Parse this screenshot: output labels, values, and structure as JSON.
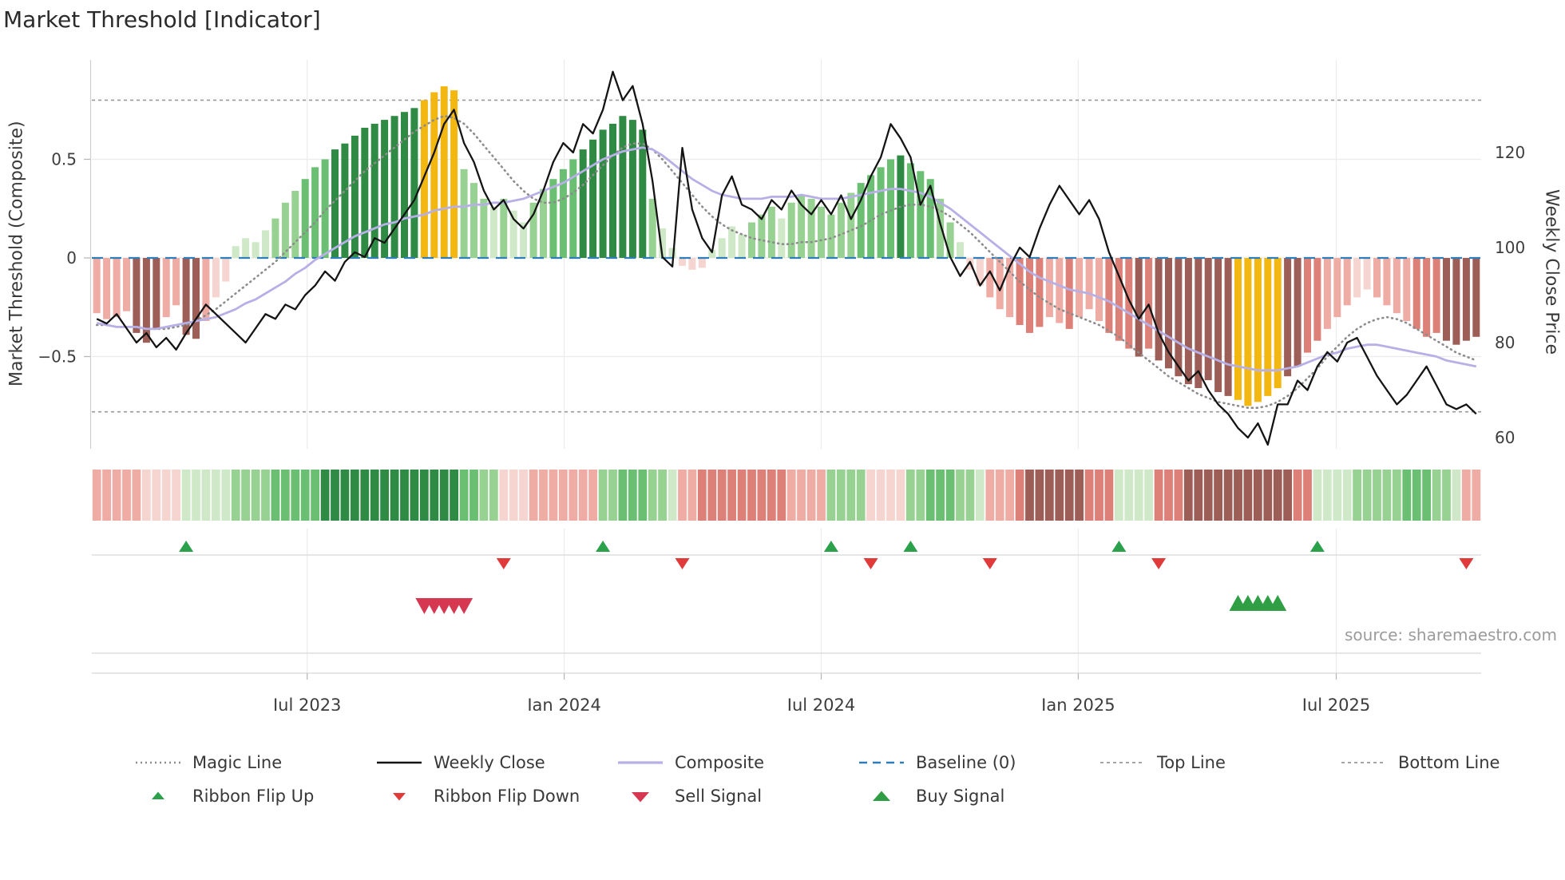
{
  "title": "Market Threshold [Indicator]",
  "source": "source: sharemaestro.com",
  "palette": {
    "bars": {
      "p1": "#f6d4cf",
      "p2": "#efaca4",
      "p3": "#dc8078",
      "m": "#9d5e57",
      "g1": "#cfe9c8",
      "g2": "#98d292",
      "g3": "#6abf72",
      "g4": "#2f8b44",
      "y": "#f3b712"
    },
    "css": {
      "magic": "#8c8c8c",
      "weekly": "#141414",
      "composite": "#b7b0e6",
      "baseline": "#2e7ebb",
      "guide": "#9a9a9a",
      "flipup": "#2ba14c",
      "flipdown": "#e03a3a",
      "sell": "#d63852",
      "buy": "#2f9e44"
    }
  },
  "legend": {
    "row1": [
      {
        "label": "Magic Line"
      },
      {
        "label": "Weekly Close"
      },
      {
        "label": "Composite"
      },
      {
        "label": "Baseline (0)"
      },
      {
        "label": "Top Line"
      },
      {
        "label": "Bottom Line"
      }
    ],
    "row2": [
      {
        "label": "Ribbon Flip Up"
      },
      {
        "label": "Ribbon Flip Down"
      },
      {
        "label": "Sell Signal"
      },
      {
        "label": "Buy Signal"
      }
    ]
  },
  "chart_data": {
    "type": "composite-indicator",
    "title": "Market Threshold [Indicator]",
    "left_axis": {
      "label": "Market Threshold (Composite)",
      "ticks": [
        {
          "label": "0.5",
          "v": 0.5
        },
        {
          "label": "0",
          "v": 0
        },
        {
          "label": "−0.5",
          "v": -0.5
        }
      ],
      "range": [
        -1.0,
        1.0
      ]
    },
    "right_axis": {
      "label": "Weekly Close Price",
      "ticks": [
        {
          "label": "120",
          "v": 120
        },
        {
          "label": "100",
          "v": 100
        },
        {
          "label": "80",
          "v": 80
        },
        {
          "label": "60",
          "v": 60
        }
      ],
      "range": [
        55,
        140
      ]
    },
    "x_axis": {
      "ticks": [
        {
          "label": "Jul 2023",
          "i": 21.7
        },
        {
          "label": "Jan 2024",
          "i": 47.6
        },
        {
          "label": "Jul 2024",
          "i": 73.5
        },
        {
          "label": "Jan 2025",
          "i": 99.4
        },
        {
          "label": "Jul 2025",
          "i": 125.4
        }
      ]
    },
    "baseline": 0,
    "top_line": 0.8,
    "bottom_line": -0.78,
    "bars": {
      "values": [
        -0.28,
        -0.31,
        -0.3,
        -0.27,
        -0.38,
        -0.43,
        -0.36,
        -0.3,
        -0.24,
        -0.39,
        -0.41,
        -0.32,
        -0.2,
        -0.12,
        0.06,
        0.1,
        0.08,
        0.14,
        0.2,
        0.28,
        0.34,
        0.4,
        0.46,
        0.5,
        0.55,
        0.58,
        0.62,
        0.66,
        0.68,
        0.7,
        0.72,
        0.74,
        0.76,
        0.8,
        0.84,
        0.87,
        0.85,
        0.45,
        0.38,
        0.3,
        0.26,
        0.3,
        0.24,
        0.18,
        0.28,
        0.35,
        0.4,
        0.45,
        0.5,
        0.55,
        0.6,
        0.65,
        0.68,
        0.72,
        0.7,
        0.65,
        0.3,
        0.15,
        0.05,
        -0.04,
        -0.06,
        -0.05,
        0.04,
        0.1,
        0.16,
        0.12,
        0.18,
        0.22,
        0.26,
        0.2,
        0.28,
        0.32,
        0.3,
        0.26,
        0.22,
        0.28,
        0.33,
        0.38,
        0.42,
        0.46,
        0.5,
        0.52,
        0.48,
        0.44,
        0.4,
        0.3,
        0.18,
        0.08,
        -0.06,
        -0.14,
        -0.2,
        -0.26,
        -0.3,
        -0.34,
        -0.38,
        -0.35,
        -0.3,
        -0.33,
        -0.36,
        -0.3,
        -0.26,
        -0.32,
        -0.38,
        -0.42,
        -0.46,
        -0.5,
        -0.46,
        -0.52,
        -0.56,
        -0.6,
        -0.64,
        -0.66,
        -0.62,
        -0.68,
        -0.7,
        -0.72,
        -0.75,
        -0.73,
        -0.7,
        -0.66,
        -0.6,
        -0.55,
        -0.48,
        -0.42,
        -0.36,
        -0.3,
        -0.24,
        -0.2,
        -0.16,
        -0.2,
        -0.24,
        -0.28,
        -0.32,
        -0.36,
        -0.4,
        -0.38,
        -0.42,
        -0.44,
        -0.42,
        -0.4
      ],
      "colors": [
        "p2",
        "p2",
        "p2",
        "p2",
        "m",
        "m",
        "m",
        "p2",
        "p2",
        "m",
        "m",
        "p2",
        "p1",
        "p1",
        "g1",
        "g1",
        "g1",
        "g1",
        "g2",
        "g2",
        "g2",
        "g3",
        "g3",
        "g3",
        "g4",
        "g4",
        "g4",
        "g4",
        "g4",
        "g4",
        "g4",
        "g4",
        "g4",
        "y",
        "y",
        "y",
        "y",
        "g2",
        "g2",
        "g2",
        "g1",
        "g2",
        "g1",
        "g1",
        "g2",
        "g2",
        "g3",
        "g3",
        "g3",
        "g4",
        "g4",
        "g4",
        "g4",
        "g4",
        "g4",
        "g4",
        "g2",
        "g1",
        "g1",
        "p1",
        "p1",
        "p1",
        "g1",
        "g1",
        "g1",
        "g1",
        "g2",
        "g2",
        "g2",
        "g1",
        "g2",
        "g2",
        "g2",
        "g2",
        "g2",
        "g2",
        "g2",
        "g3",
        "g3",
        "g3",
        "g3",
        "g4",
        "g3",
        "g3",
        "g3",
        "g2",
        "g2",
        "g1",
        "p1",
        "p1",
        "p2",
        "p2",
        "p2",
        "p3",
        "p3",
        "p3",
        "p2",
        "p2",
        "p3",
        "p2",
        "p2",
        "p2",
        "p3",
        "p3",
        "p3",
        "m",
        "p3",
        "m",
        "m",
        "m",
        "m",
        "m",
        "m",
        "m",
        "m",
        "y",
        "y",
        "y",
        "y",
        "y",
        "m",
        "m",
        "p3",
        "p3",
        "p2",
        "p2",
        "p2",
        "p1",
        "p1",
        "p2",
        "p2",
        "p2",
        "p2",
        "p3",
        "p3",
        "p3",
        "m",
        "m",
        "m",
        "m"
      ]
    },
    "weekly_close": [
      85,
      84,
      86,
      83,
      80,
      82,
      79,
      81,
      78.5,
      82,
      85,
      88,
      86,
      84,
      82,
      80,
      83,
      86,
      85,
      88,
      87,
      90,
      92,
      95,
      93,
      97,
      99,
      98,
      102,
      101,
      104,
      107,
      110,
      115,
      120,
      126,
      129,
      122,
      118,
      112,
      108,
      110,
      106,
      104,
      107,
      112,
      118,
      122,
      120,
      126,
      124,
      129,
      137,
      131,
      134,
      126,
      114,
      98,
      96,
      121,
      108,
      102,
      99,
      111,
      115,
      109,
      108,
      106,
      110,
      108,
      112,
      109,
      107,
      110,
      107,
      111,
      106,
      110,
      115,
      119,
      126,
      123,
      119,
      109,
      113,
      105,
      98,
      94,
      97,
      92,
      95,
      91,
      96,
      100,
      98,
      104,
      109,
      113,
      110,
      107,
      110,
      106,
      99,
      94,
      89,
      85,
      88,
      82,
      78,
      75,
      72,
      74,
      70,
      67,
      65,
      62,
      60,
      63,
      58.5,
      67,
      67,
      72,
      70,
      75,
      78,
      76,
      80,
      81,
      77,
      73,
      70,
      67,
      69,
      72,
      75,
      71,
      67,
      66,
      67,
      65
    ],
    "composite_line": [
      -0.33,
      -0.34,
      -0.35,
      -0.35,
      -0.35,
      -0.36,
      -0.36,
      -0.35,
      -0.34,
      -0.33,
      -0.32,
      -0.31,
      -0.3,
      -0.28,
      -0.26,
      -0.23,
      -0.21,
      -0.18,
      -0.15,
      -0.12,
      -0.08,
      -0.05,
      -0.01,
      0.02,
      0.05,
      0.08,
      0.11,
      0.13,
      0.15,
      0.17,
      0.18,
      0.2,
      0.21,
      0.22,
      0.24,
      0.25,
      0.26,
      0.26,
      0.27,
      0.27,
      0.28,
      0.28,
      0.29,
      0.3,
      0.32,
      0.34,
      0.36,
      0.38,
      0.41,
      0.44,
      0.47,
      0.5,
      0.52,
      0.54,
      0.55,
      0.56,
      0.55,
      0.52,
      0.48,
      0.44,
      0.4,
      0.37,
      0.34,
      0.32,
      0.31,
      0.3,
      0.3,
      0.3,
      0.31,
      0.31,
      0.31,
      0.32,
      0.31,
      0.3,
      0.3,
      0.3,
      0.31,
      0.32,
      0.33,
      0.34,
      0.35,
      0.35,
      0.34,
      0.33,
      0.31,
      0.28,
      0.25,
      0.21,
      0.17,
      0.13,
      0.09,
      0.05,
      0.01,
      -0.03,
      -0.07,
      -0.1,
      -0.12,
      -0.14,
      -0.16,
      -0.17,
      -0.18,
      -0.2,
      -0.22,
      -0.25,
      -0.28,
      -0.31,
      -0.34,
      -0.37,
      -0.4,
      -0.43,
      -0.46,
      -0.48,
      -0.5,
      -0.52,
      -0.54,
      -0.55,
      -0.56,
      -0.57,
      -0.57,
      -0.57,
      -0.56,
      -0.55,
      -0.53,
      -0.51,
      -0.49,
      -0.48,
      -0.46,
      -0.45,
      -0.44,
      -0.44,
      -0.45,
      -0.46,
      -0.47,
      -0.48,
      -0.49,
      -0.5,
      -0.52,
      -0.53,
      -0.54,
      -0.55
    ],
    "magic_line": [
      -0.34,
      -0.34,
      -0.35,
      -0.35,
      -0.35,
      -0.36,
      -0.36,
      -0.36,
      -0.35,
      -0.34,
      -0.32,
      -0.29,
      -0.26,
      -0.22,
      -0.18,
      -0.14,
      -0.1,
      -0.06,
      -0.02,
      0.03,
      0.08,
      0.13,
      0.18,
      0.24,
      0.29,
      0.34,
      0.39,
      0.44,
      0.48,
      0.52,
      0.56,
      0.6,
      0.64,
      0.67,
      0.7,
      0.72,
      0.71,
      0.68,
      0.63,
      0.57,
      0.51,
      0.45,
      0.39,
      0.34,
      0.3,
      0.28,
      0.28,
      0.3,
      0.33,
      0.37,
      0.42,
      0.47,
      0.52,
      0.56,
      0.58,
      0.58,
      0.55,
      0.5,
      0.44,
      0.38,
      0.32,
      0.26,
      0.21,
      0.17,
      0.14,
      0.12,
      0.1,
      0.09,
      0.08,
      0.07,
      0.07,
      0.08,
      0.08,
      0.09,
      0.1,
      0.12,
      0.14,
      0.16,
      0.19,
      0.22,
      0.24,
      0.26,
      0.27,
      0.27,
      0.26,
      0.24,
      0.21,
      0.17,
      0.13,
      0.08,
      0.03,
      -0.02,
      -0.07,
      -0.12,
      -0.16,
      -0.2,
      -0.23,
      -0.26,
      -0.28,
      -0.3,
      -0.32,
      -0.34,
      -0.37,
      -0.4,
      -0.44,
      -0.48,
      -0.52,
      -0.56,
      -0.6,
      -0.63,
      -0.66,
      -0.69,
      -0.71,
      -0.73,
      -0.74,
      -0.75,
      -0.76,
      -0.76,
      -0.75,
      -0.73,
      -0.7,
      -0.66,
      -0.61,
      -0.56,
      -0.5,
      -0.45,
      -0.4,
      -0.36,
      -0.33,
      -0.31,
      -0.3,
      -0.31,
      -0.33,
      -0.36,
      -0.39,
      -0.42,
      -0.45,
      -0.48,
      -0.5,
      -0.52
    ],
    "ribbon": [
      "p2",
      "p2",
      "p2",
      "p2",
      "p2",
      "p1",
      "p1",
      "p1",
      "p1",
      "g1",
      "g1",
      "g1",
      "g1",
      "g1",
      "g2",
      "g2",
      "g2",
      "g2",
      "g3",
      "g3",
      "g3",
      "g3",
      "g3",
      "g4",
      "g4",
      "g4",
      "g4",
      "g4",
      "g4",
      "g4",
      "g4",
      "g4",
      "g4",
      "g4",
      "g4",
      "g4",
      "g4",
      "g3",
      "g3",
      "g2",
      "g2",
      "p1",
      "p1",
      "p1",
      "p2",
      "p2",
      "p2",
      "p2",
      "p2",
      "p2",
      "p2",
      "g2",
      "g2",
      "g3",
      "g3",
      "g3",
      "g2",
      "g2",
      "g1",
      "p2",
      "p2",
      "p3",
      "p3",
      "p3",
      "p3",
      "p3",
      "p3",
      "p3",
      "p3",
      "p3",
      "p2",
      "p2",
      "p2",
      "p2",
      "g2",
      "g2",
      "g2",
      "g2",
      "p1",
      "p1",
      "p1",
      "p1",
      "g2",
      "g2",
      "g3",
      "g3",
      "g3",
      "g2",
      "g2",
      "g1",
      "p2",
      "p2",
      "p2",
      "p3",
      "m",
      "m",
      "m",
      "m",
      "m",
      "m",
      "p3",
      "p3",
      "p3",
      "g1",
      "g1",
      "g1",
      "g1",
      "p3",
      "p3",
      "p3",
      "m",
      "m",
      "m",
      "m",
      "m",
      "m",
      "m",
      "m",
      "m",
      "m",
      "m",
      "p3",
      "p3",
      "g1",
      "g1",
      "g1",
      "g1",
      "g2",
      "g2",
      "g2",
      "g2",
      "g2",
      "g3",
      "g3",
      "g3",
      "g2",
      "g2",
      "g1",
      "p2",
      "p2"
    ],
    "signals": {
      "ribbon_flip_up": [
        9,
        51,
        74,
        82,
        103,
        123
      ],
      "ribbon_flip_down": [
        41,
        59,
        78,
        90,
        107,
        138
      ],
      "sell": [
        33,
        34,
        35,
        36,
        37
      ],
      "buy": [
        115,
        116,
        117,
        118,
        119
      ]
    }
  }
}
